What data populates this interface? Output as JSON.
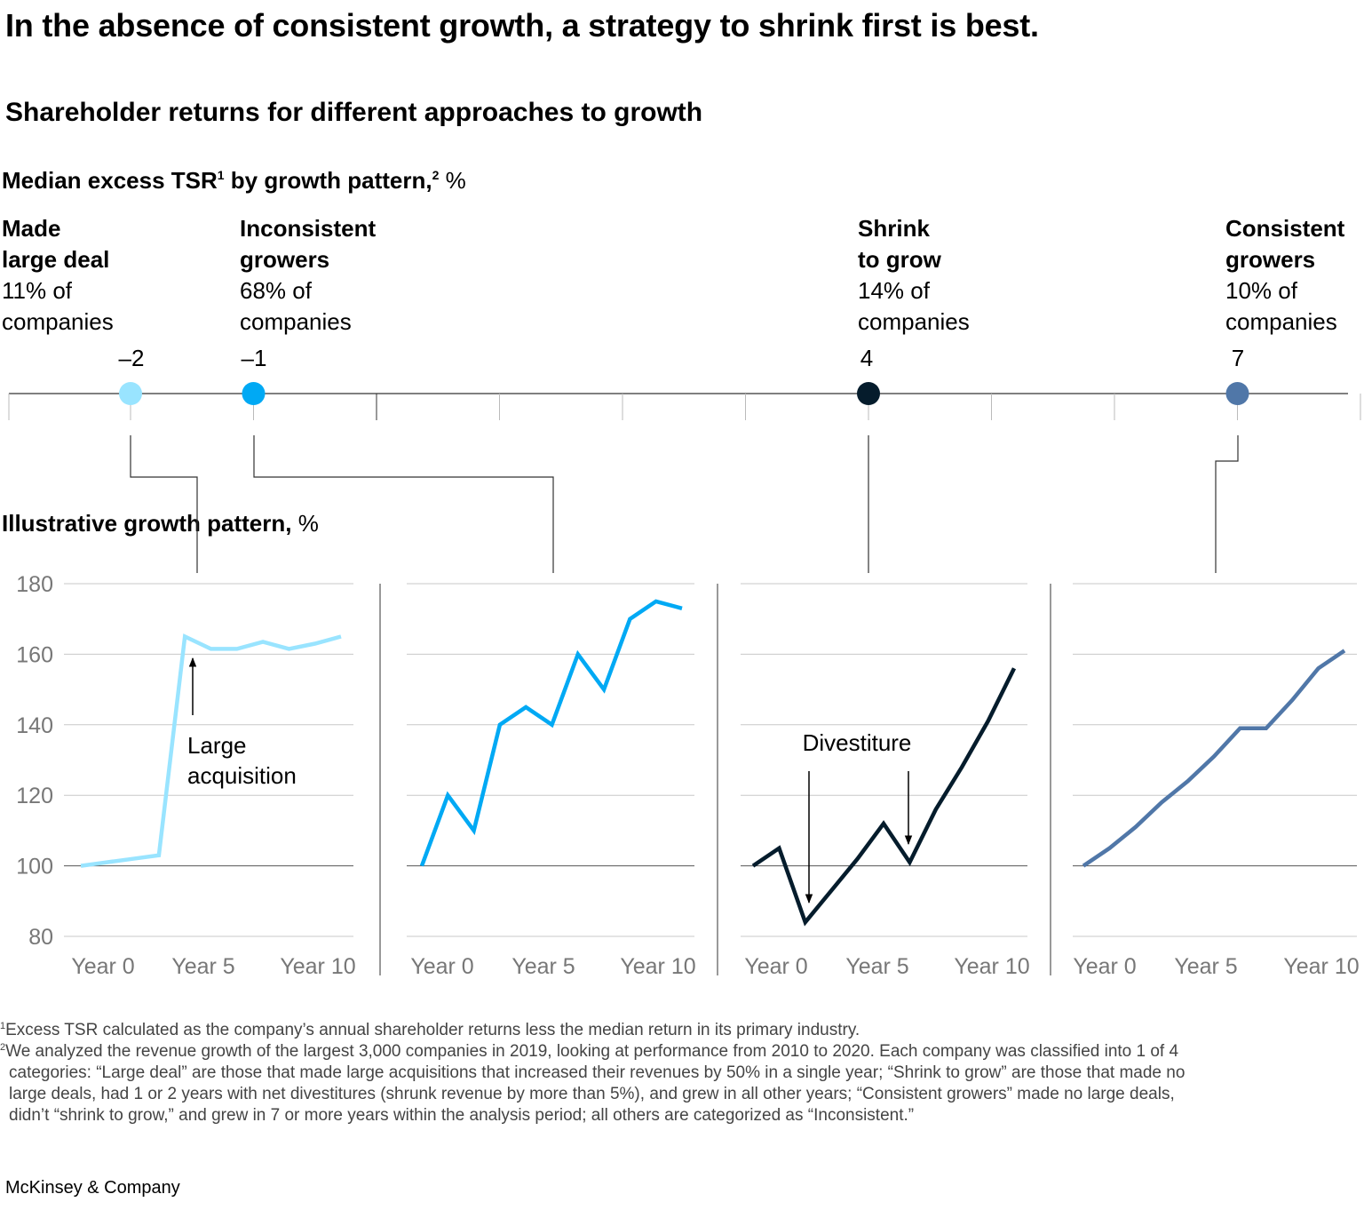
{
  "title": "In the absence of consistent growth, a strategy to shrink first is best.",
  "subtitle": "Shareholder returns for different approaches to growth",
  "tsr_label": {
    "main": "Median excess TSR",
    "sup1": "1",
    "mid": " by growth pattern,",
    "sup2": "2",
    "unit": " %"
  },
  "growth_label": {
    "main": "Illustrative growth pattern,",
    "unit": " %"
  },
  "categories": [
    {
      "name": "Made\nlarge deal",
      "share": "11% of\ncompanies",
      "tsr": -2,
      "tsr_label": "–2",
      "color": "#99E4FF"
    },
    {
      "name": "Inconsistent\ngrowers",
      "share": "68% of\ncompanies",
      "tsr": -1,
      "tsr_label": "–1",
      "color": "#00A9F4"
    },
    {
      "name": "Shrink\nto grow",
      "share": "14% of\ncompanies",
      "tsr": 4,
      "tsr_label": "4",
      "color": "#051C2C"
    },
    {
      "name": "Consistent\ngrowers",
      "share": "10% of\ncompanies",
      "tsr": 7,
      "tsr_label": "7",
      "color": "#5077A8"
    }
  ],
  "chart_data": [
    {
      "type": "dot-strip",
      "title": "Median excess TSR by growth pattern, %",
      "categories": [
        "Made large deal",
        "Inconsistent growers",
        "Shrink to grow",
        "Consistent growers"
      ],
      "values": [
        -2,
        -1,
        4,
        7
      ],
      "xlim": [
        -3,
        8
      ]
    },
    {
      "type": "line",
      "title": "Illustrative growth pattern, %",
      "x": [
        0,
        1,
        2,
        3,
        4,
        5,
        6,
        7,
        8,
        9,
        10
      ],
      "xticks": [
        "Year 0",
        "Year 5",
        "Year 10"
      ],
      "yticks": [
        "80",
        "100",
        "120",
        "140",
        "160",
        "180"
      ],
      "ylim": [
        80,
        180
      ],
      "series": [
        {
          "name": "Made large deal",
          "values": [
            100,
            101,
            102,
            103,
            165,
            161.5,
            161.5,
            163.5,
            161.5,
            163,
            165
          ]
        },
        {
          "name": "Inconsistent growers",
          "values": [
            100,
            120,
            110,
            140,
            145,
            140,
            160,
            150,
            170,
            175,
            173
          ]
        },
        {
          "name": "Shrink to grow",
          "values": [
            100,
            105,
            84,
            93,
            102,
            112,
            101,
            116,
            128,
            141,
            156
          ]
        },
        {
          "name": "Consistent growers",
          "values": [
            100,
            105,
            111,
            118,
            124,
            131,
            139,
            139,
            147,
            156,
            161
          ]
        }
      ],
      "annotations": [
        {
          "series": "Made large deal",
          "text": "Large\nacquisition"
        },
        {
          "series": "Shrink to grow",
          "text": "Divestiture"
        }
      ]
    }
  ],
  "footnotes": [
    {
      "sup": "1",
      "text": "Excess TSR calculated as the company’s annual shareholder returns less the median return in its primary industry."
    },
    {
      "sup": "2",
      "text": "We analyzed the revenue growth of the largest 3,000 companies in 2019, looking at performance from 2010 to 2020. Each company was classified into 1 of 4",
      "cont": [
        "categories: “Large deal” are those that made large acquisitions that increased their revenues by 50% in a single year; “Shrink to grow” are those that made no",
        "large deals, had 1 or 2 years with net divestitures (shrunk revenue by more than 5%), and grew in all other years; “Consistent growers” made no large deals,",
        "didn’t “shrink to grow,” and grew in 7 or more years within the analysis period; all others are categorized as “Inconsistent.”"
      ]
    }
  ],
  "brand": "McKinsey & Company"
}
